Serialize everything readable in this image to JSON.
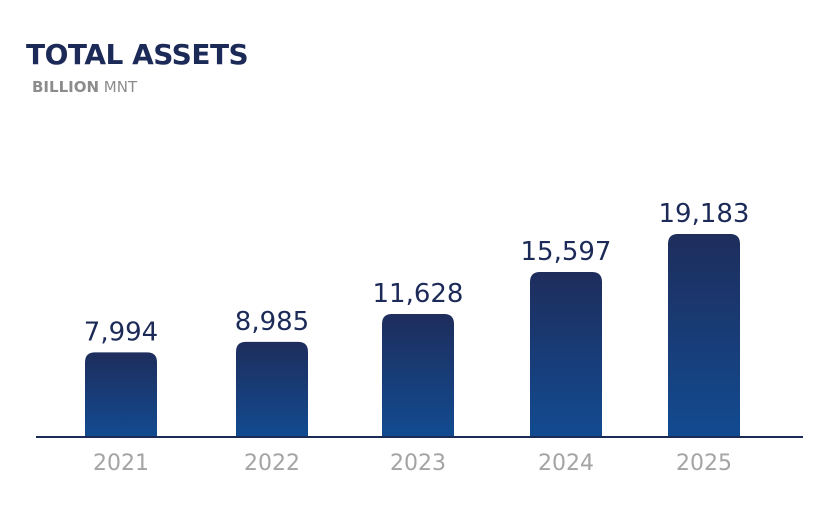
{
  "header": {
    "title": "TOTAL ASSETS",
    "subtitle_bold": "BILLION",
    "subtitle_rest": " MNT"
  },
  "colors": {
    "bar_top": "#1e2d5c",
    "bar_bottom": "#124b91",
    "axis": "#1c2a58",
    "value_text": "#1c2a58",
    "tick_text": "#a4a4a4"
  },
  "chart_data": {
    "type": "bar",
    "title": "TOTAL ASSETS",
    "ylabel": "BILLION MNT",
    "xlabel": "",
    "categories": [
      "2021",
      "2022",
      "2023",
      "2024",
      "2025"
    ],
    "values": [
      7994,
      8985,
      11628,
      15597,
      19183
    ],
    "value_labels": [
      "7,994",
      "8,985",
      "11,628",
      "15,597",
      "19,183"
    ],
    "grid": false,
    "legend": "none"
  }
}
